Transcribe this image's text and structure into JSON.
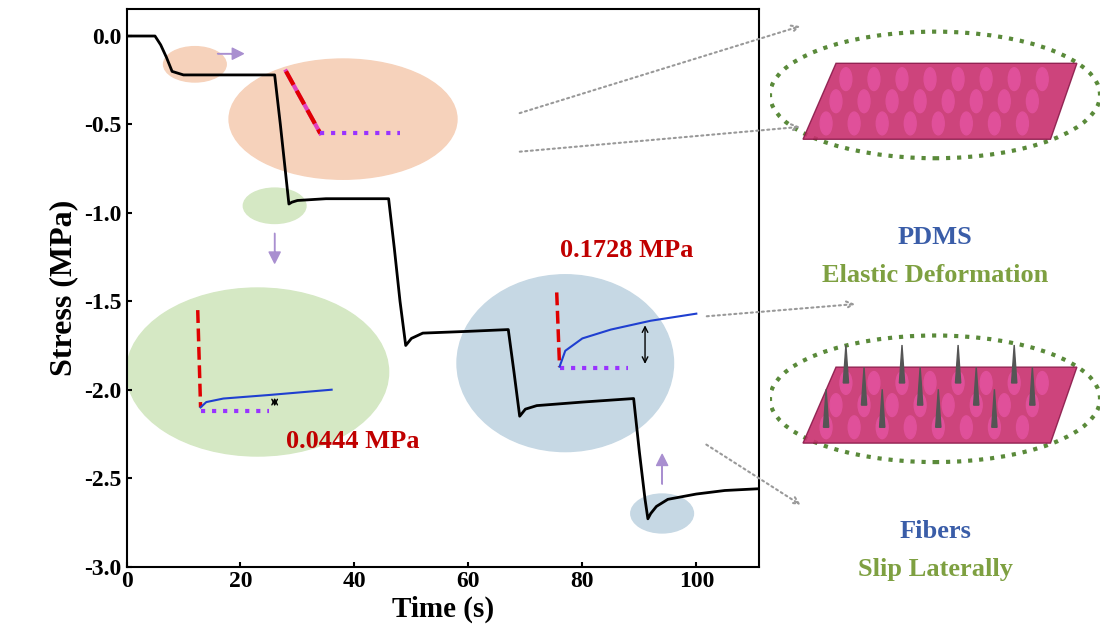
{
  "chart_data": {
    "type": "line",
    "xlabel": "Time (s)",
    "ylabel": "Stress (MPa)",
    "x": [
      0,
      5,
      6,
      7,
      8,
      9,
      10,
      26,
      27,
      28,
      28.5,
      29,
      30,
      35,
      46,
      47,
      48,
      49,
      50,
      52,
      60,
      67,
      68,
      69,
      70,
      72,
      80,
      89,
      90,
      91,
      91.5,
      92,
      93,
      95,
      100,
      105,
      111
    ],
    "values": [
      0,
      0,
      -0.05,
      -0.12,
      -0.2,
      -0.21,
      -0.22,
      -0.22,
      -0.5,
      -0.8,
      -0.95,
      -0.94,
      -0.93,
      -0.92,
      -0.92,
      -1.2,
      -1.5,
      -1.75,
      -1.71,
      -1.68,
      -1.67,
      -1.66,
      -1.9,
      -2.15,
      -2.11,
      -2.09,
      -2.07,
      -2.05,
      -2.35,
      -2.62,
      -2.73,
      -2.7,
      -2.66,
      -2.62,
      -2.59,
      -2.57,
      -2.56
    ],
    "color": "#000000",
    "xlim": [
      0,
      111
    ],
    "ylim": [
      -3.0,
      0.15
    ],
    "xticks": [
      0,
      20,
      40,
      60,
      80,
      100
    ],
    "yticks": [
      0.0,
      -0.5,
      -1.0,
      -1.5,
      -2.0,
      -2.5,
      -3.0
    ],
    "annotations": [
      "0.0444 MPa",
      "0.1728 MPa"
    ],
    "schematics": [
      {
        "material": "PDMS",
        "mechanism": "Elastic Deformation"
      },
      {
        "material": "Fibers",
        "mechanism": "Slip Laterally"
      }
    ]
  }
}
